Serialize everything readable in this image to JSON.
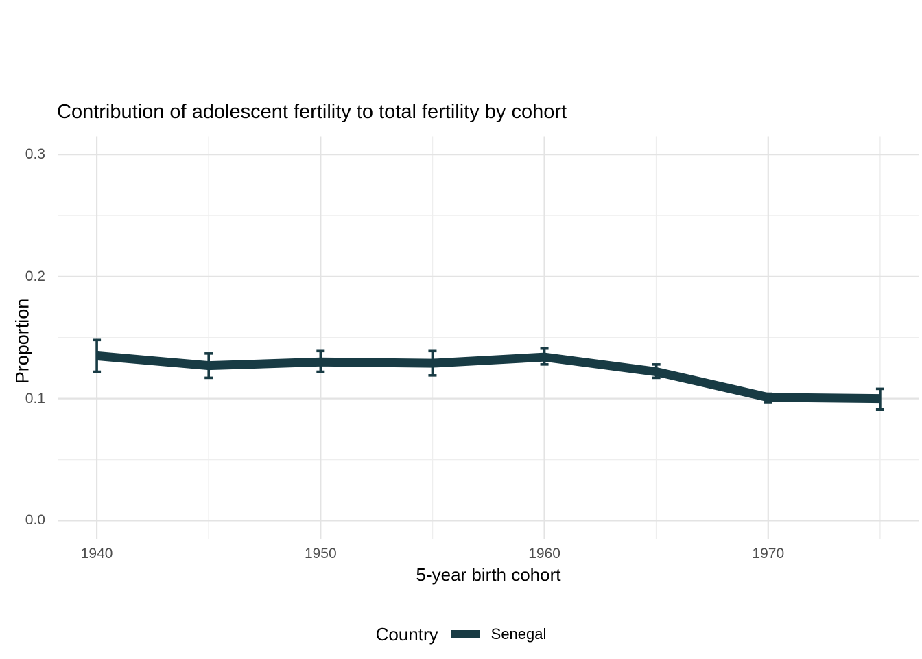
{
  "chart_data": {
    "type": "line",
    "title": "Contribution of adolescent fertility to total fertility by cohort",
    "xlabel": "5-year birth cohort",
    "ylabel": "Proportion",
    "x": [
      1940,
      1945,
      1950,
      1955,
      1960,
      1965,
      1970,
      1975
    ],
    "series": [
      {
        "name": "Senegal",
        "values": [
          0.135,
          0.127,
          0.13,
          0.129,
          0.134,
          0.122,
          0.101,
          0.1
        ],
        "ci_low": [
          0.122,
          0.117,
          0.122,
          0.119,
          0.128,
          0.117,
          0.097,
          0.091
        ],
        "ci_high": [
          0.148,
          0.137,
          0.139,
          0.139,
          0.141,
          0.128,
          0.104,
          0.108
        ],
        "color": "#183b44"
      }
    ],
    "xlim": [
      1938.25,
      1976.75
    ],
    "ylim": [
      -0.015,
      0.315
    ],
    "x_ticks": [
      {
        "label": "1940",
        "value": 1940
      },
      {
        "label": "1950",
        "value": 1950
      },
      {
        "label": "1960",
        "value": 1960
      },
      {
        "label": "1970",
        "value": 1970
      }
    ],
    "x_minor_gridlines": [
      1945,
      1955,
      1965,
      1975
    ],
    "y_ticks": [
      {
        "label": "0.0",
        "value": 0.0
      },
      {
        "label": "0.1",
        "value": 0.1
      },
      {
        "label": "0.2",
        "value": 0.2
      },
      {
        "label": "0.3",
        "value": 0.3
      }
    ],
    "y_minor_gridlines": [
      0.05,
      0.15,
      0.25
    ],
    "grid": "major-and-minor, no axis lines, no tick marks",
    "legend": {
      "title": "Country",
      "position": "bottom",
      "entries": [
        {
          "label": "Senegal",
          "color": "#183b44"
        }
      ]
    },
    "colors": {
      "background": "#ffffff",
      "accent": "#183b44",
      "grid_major": "#e3e3e3",
      "grid_minor": "#eeeeee",
      "tick_label": "#4d4d4d",
      "text": "#000000"
    }
  }
}
